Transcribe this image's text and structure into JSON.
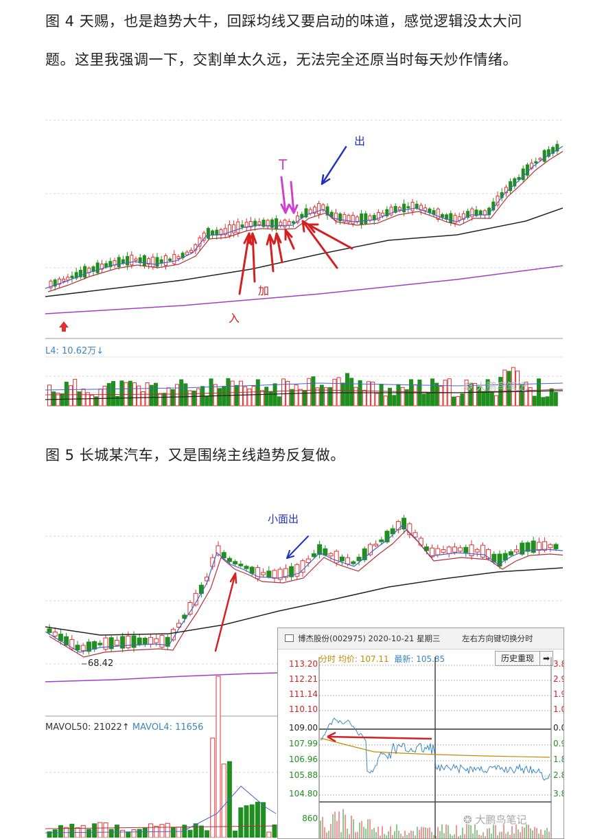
{
  "paragraphs": {
    "p1_line1": "图 4 天赐，也是趋势大牛，回踩均线又要启动的味道，感觉逻辑没太大问",
    "p1_line2": "题。这里我强调一下，交割单太久远，无法完全还原当时每天炒作情绪。",
    "p2": "图 5 长城某汽车，又是围绕主线趋势反复做。"
  },
  "figure4": {
    "annotations": {
      "sell": "出",
      "t": "T",
      "add": "加",
      "buy": "入"
    },
    "volume_label": "L4: 10.62万↓",
    "watermark": "大鹏鸟笔记"
  },
  "figure5": {
    "annotation_sell": "小面出",
    "low_label": "68.42",
    "volume_label_part1": "MAVOL50: 21022↑",
    "volume_label_part2": "MAVOL4: 11656",
    "watermark": "大鹏鸟笔记",
    "inset": {
      "title": "博杰股份(002975) 2020-10-21 星期三",
      "hint": "左右方向键切换分时",
      "sub_label": "分时 均价: ",
      "avg_price": "107.11",
      "latest_label": "最新: ",
      "latest_price": "105.85",
      "history_button": "历史重现",
      "arrow_button": "➡",
      "left_prices": [
        "113.20",
        "112.21",
        "111.14",
        "110.10",
        "109.00",
        "107.99",
        "106.96",
        "105.88",
        "104.80"
      ],
      "right_pct": [
        "3.8",
        "2.9",
        "1.9",
        "1.0",
        "0.0",
        "0.9",
        "1.8",
        "2.8",
        "3.8"
      ],
      "volume_value": "860"
    }
  },
  "colors": {
    "up": "#e03030",
    "down": "#1f8f1f",
    "ma_blue": "#4a5fd0",
    "ma_red": "#b03040",
    "ma_black": "#222222",
    "ma_purple": "#a040c0",
    "arrow_red": "#d42020",
    "arrow_blue": "#2030c0",
    "arrow_magenta": "#d040d0"
  }
}
